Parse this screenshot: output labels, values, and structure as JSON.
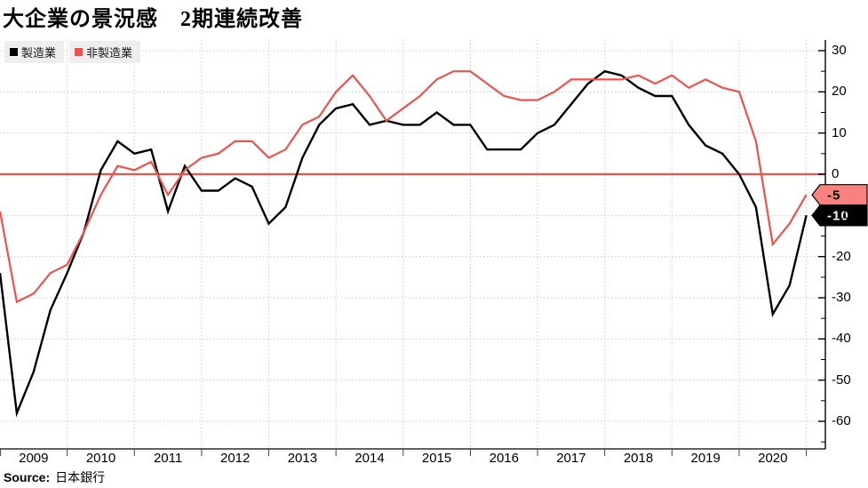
{
  "title": "大企業の景況感　2期連続改善",
  "legend": [
    {
      "label": "製造業",
      "color": "#000000"
    },
    {
      "label": "非製造業",
      "color": "#f0524b"
    }
  ],
  "source": {
    "label": "Source:",
    "text": "日本銀行"
  },
  "badges": [
    {
      "value": "-5",
      "series": "非製造業",
      "bg": "#f8827e",
      "text_color": "#000000",
      "border": "#000000"
    },
    {
      "value": "-10",
      "series": "製造業",
      "bg": "#000000",
      "text_color": "#ffffff",
      "border": "#000000"
    }
  ],
  "colors": {
    "manufacturing": "#000000",
    "nonmanufacturing": "#f0524b",
    "zero_line": "#f0524b",
    "grid": "#cccccc",
    "axis": "#000000"
  },
  "chart_data": {
    "type": "line",
    "title": "大企業の景況感　2期連続改善",
    "x_tick_labels": [
      "2009",
      "2010",
      "2011",
      "2012",
      "2013",
      "2014",
      "2015",
      "2016",
      "2017",
      "2018",
      "2019",
      "2020"
    ],
    "y_ticks": [
      30,
      20,
      10,
      0,
      -10,
      -20,
      -30,
      -40,
      -50,
      -60
    ],
    "ylim": [
      -66,
      32
    ],
    "grid": true,
    "zero_line": true,
    "legend_position": "top-left",
    "x": [
      "2008-Q4",
      "2009-Q1",
      "2009-Q2",
      "2009-Q3",
      "2009-Q4",
      "2010-Q1",
      "2010-Q2",
      "2010-Q3",
      "2010-Q4",
      "2011-Q1",
      "2011-Q2",
      "2011-Q3",
      "2011-Q4",
      "2012-Q1",
      "2012-Q2",
      "2012-Q3",
      "2012-Q4",
      "2013-Q1",
      "2013-Q2",
      "2013-Q3",
      "2013-Q4",
      "2014-Q1",
      "2014-Q2",
      "2014-Q3",
      "2014-Q4",
      "2015-Q1",
      "2015-Q2",
      "2015-Q3",
      "2015-Q4",
      "2016-Q1",
      "2016-Q2",
      "2016-Q3",
      "2016-Q4",
      "2017-Q1",
      "2017-Q2",
      "2017-Q3",
      "2017-Q4",
      "2018-Q1",
      "2018-Q2",
      "2018-Q3",
      "2018-Q4",
      "2019-Q1",
      "2019-Q2",
      "2019-Q3",
      "2019-Q4",
      "2020-Q1",
      "2020-Q2",
      "2020-Q3",
      "2020-Q4"
    ],
    "series": [
      {
        "name": "製造業",
        "color": "#000000",
        "values": [
          -24,
          -58,
          -48,
          -33,
          -24,
          -14,
          1,
          8,
          5,
          6,
          -9,
          2,
          -4,
          -4,
          -1,
          -3,
          -12,
          -8,
          4,
          12,
          16,
          17,
          12,
          13,
          12,
          12,
          15,
          12,
          12,
          6,
          6,
          6,
          10,
          12,
          17,
          22,
          25,
          24,
          21,
          19,
          19,
          12,
          7,
          5,
          0,
          -8,
          -34,
          -27,
          -10
        ]
      },
      {
        "name": "非製造業",
        "color": "#f0524b",
        "values": [
          -9,
          -31,
          -29,
          -24,
          -22,
          -14,
          -5,
          2,
          1,
          3,
          -5,
          1,
          4,
          5,
          8,
          8,
          4,
          6,
          12,
          14,
          20,
          24,
          19,
          13,
          16,
          19,
          23,
          25,
          25,
          22,
          19,
          18,
          18,
          20,
          23,
          23,
          23,
          23,
          24,
          22,
          24,
          21,
          23,
          21,
          20,
          8,
          -17,
          -12,
          -5
        ]
      }
    ]
  }
}
